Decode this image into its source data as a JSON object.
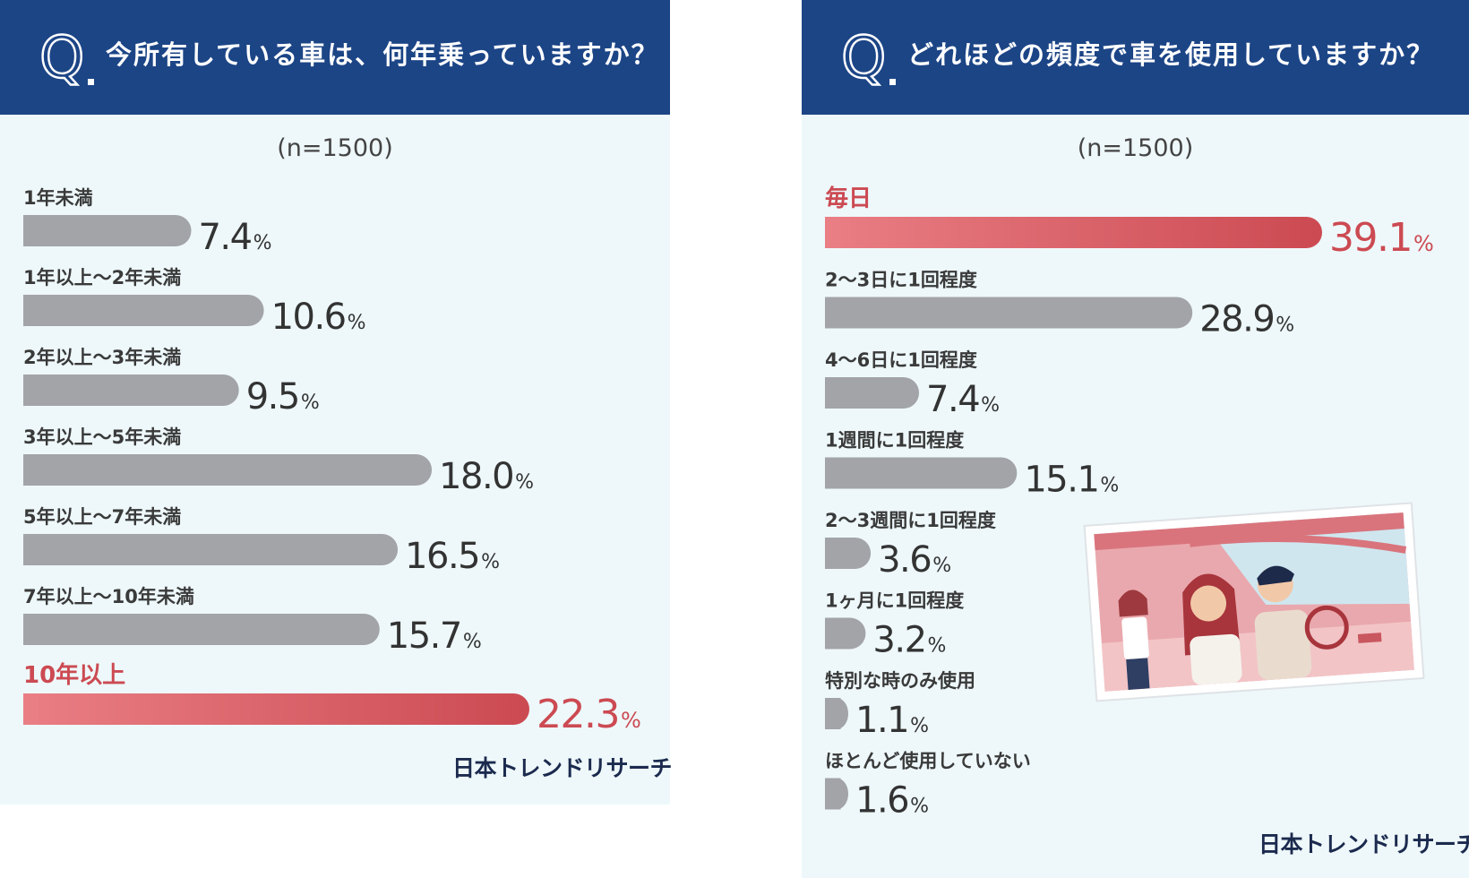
{
  "colors": {
    "header": "#1c4586",
    "panel": "#eef8fa",
    "bar": "#a3a4a8",
    "highlight": "#cc4a52",
    "highlight_light": "#e97e84"
  },
  "left": {
    "question_mark": "Q",
    "question": "今所有している車は、何年乗っていますか？",
    "sample": "(n=1500)",
    "brand": "日本トレンドリサーチ",
    "chart_data": {
      "type": "bar",
      "orientation": "horizontal",
      "unit": "%",
      "categories": [
        "1年未満",
        "1年以上～2年未満",
        "2年以上～3年未満",
        "3年以上～5年未満",
        "5年以上～7年未満",
        "7年以上～10年未満",
        "10年以上"
      ],
      "values": [
        7.4,
        10.6,
        9.5,
        18.0,
        16.5,
        15.7,
        22.3
      ],
      "value_labels": [
        "7.4",
        "10.6",
        "9.5",
        "18.0",
        "16.5",
        "15.7",
        "22.3"
      ],
      "highlight_index": 6,
      "xlim": [
        0,
        22.3
      ]
    }
  },
  "right": {
    "question_mark": "Q",
    "question": "どれほどの頻度で車を使用していますか？",
    "sample": "(n=1500)",
    "brand": "日本トレンドリサーチ",
    "chart_data": {
      "type": "bar",
      "orientation": "horizontal",
      "unit": "%",
      "categories": [
        "毎日",
        "2～3日に1回程度",
        "4～6日に1回程度",
        "1週間に1回程度",
        "2～3週間に1回程度",
        "1ヶ月に1回程度",
        "特別な時のみ使用",
        "ほとんど使用していない"
      ],
      "values": [
        39.1,
        28.9,
        7.4,
        15.1,
        3.6,
        3.2,
        1.1,
        1.6
      ],
      "value_labels": [
        "39.1",
        "28.9",
        "7.4",
        "15.1",
        "3.6",
        "3.2",
        "1.1",
        "1.6"
      ],
      "highlight_index": 0,
      "xlim": [
        0,
        39.1
      ]
    }
  }
}
